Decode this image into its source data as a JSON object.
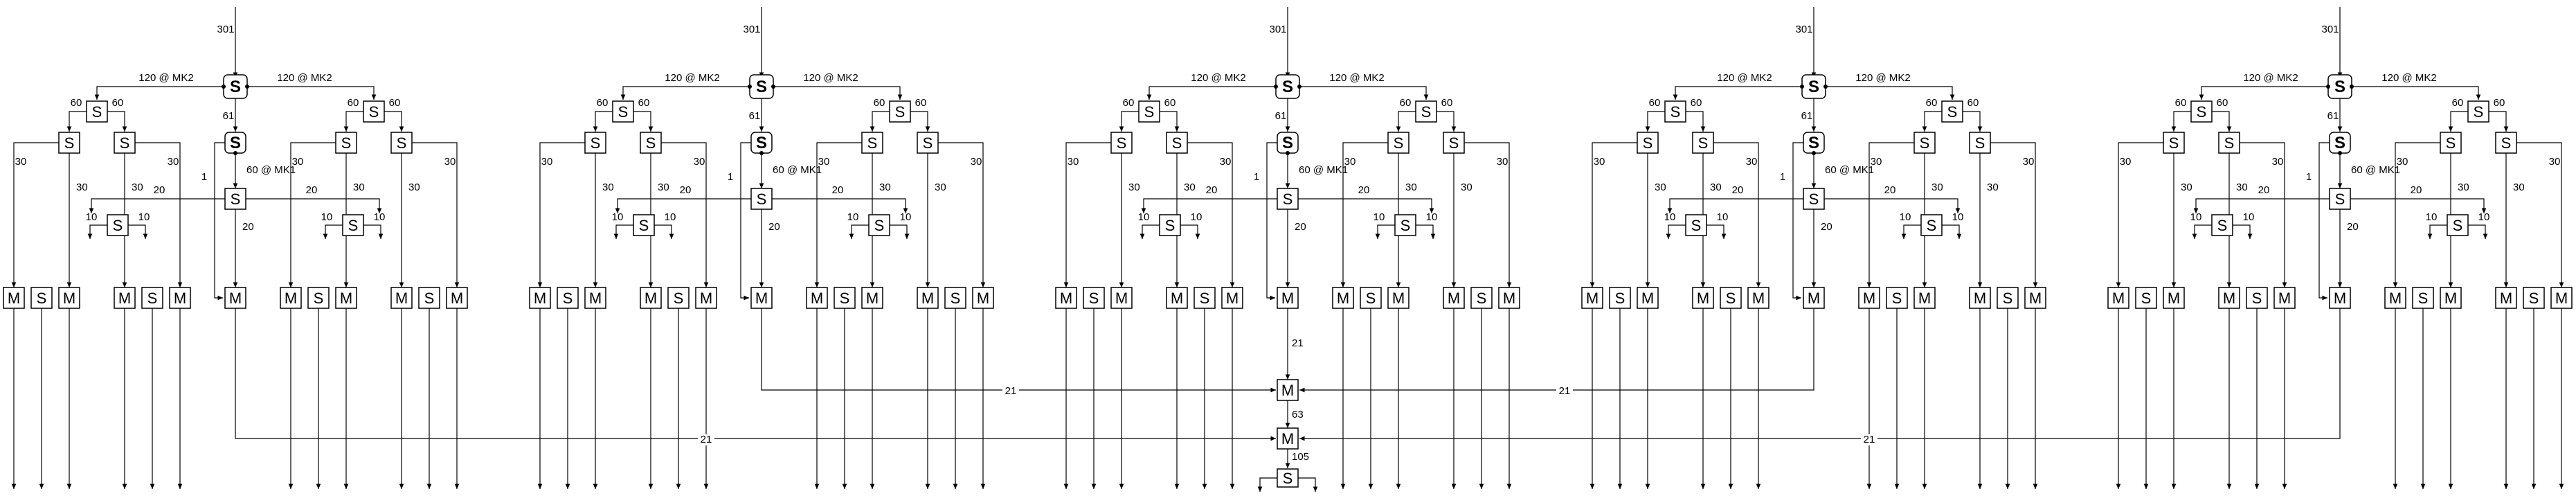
{
  "diagram": {
    "input_label": "301",
    "top_split": {
      "symbol": "S",
      "left_label": "120 @ MK2",
      "right_label": "120 @ MK2",
      "down_label": "61"
    },
    "mid_split": {
      "symbol": "S",
      "side_label": "60 @ MK1",
      "down_label": "20",
      "left_label": "20",
      "right_label": "20",
      "bypass_label": "1"
    },
    "side_split": {
      "symbol": "S",
      "label": "60",
      "outer_label": "30",
      "inner_label": "30"
    },
    "sub_split": {
      "symbol": "S",
      "label": "10"
    },
    "merge_symbol": "M",
    "units_count": 5,
    "center_chain": {
      "m1_in_label": "21",
      "m1_side_label": "21",
      "m2_in_label": "63",
      "m2_side_label": "21",
      "final_in_label": "105",
      "final_split_symbol": "S"
    }
  },
  "colors": {
    "stroke": "#000000",
    "background": "#ffffff"
  }
}
